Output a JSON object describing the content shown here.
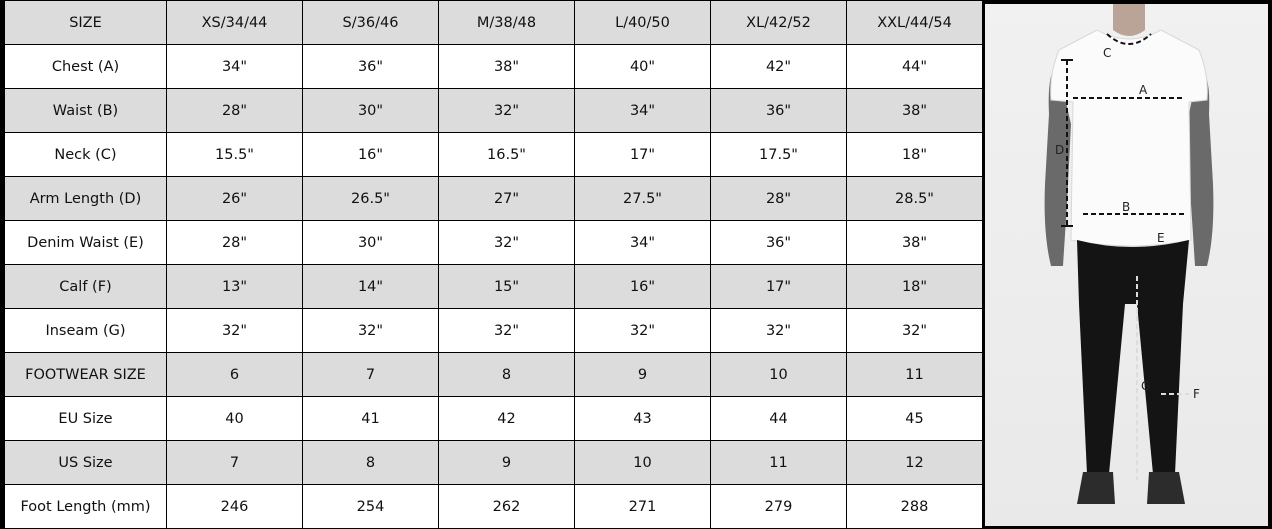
{
  "table": {
    "header": [
      "SIZE",
      "XS/34/44",
      "S/36/46",
      "M/38/48",
      "L/40/50",
      "XL/42/52",
      "XXL/44/54"
    ],
    "rows": [
      {
        "label": "Chest (A)",
        "values": [
          "34\"",
          "36\"",
          "38\"",
          "40\"",
          "42\"",
          "44\""
        ]
      },
      {
        "label": "Waist (B)",
        "values": [
          "28\"",
          "30\"",
          "32\"",
          "34\"",
          "36\"",
          "38\""
        ]
      },
      {
        "label": "Neck (C)",
        "values": [
          "15.5\"",
          "16\"",
          "16.5\"",
          "17\"",
          "17.5\"",
          "18\""
        ]
      },
      {
        "label": "Arm Length (D)",
        "values": [
          "26\"",
          "26.5\"",
          "27\"",
          "27.5\"",
          "28\"",
          "28.5\""
        ]
      },
      {
        "label": "Denim Waist (E)",
        "values": [
          "28\"",
          "30\"",
          "32\"",
          "34\"",
          "36\"",
          "38\""
        ]
      },
      {
        "label": "Calf (F)",
        "values": [
          "13\"",
          "14\"",
          "15\"",
          "16\"",
          "17\"",
          "18\""
        ]
      },
      {
        "label": "Inseam (G)",
        "values": [
          "32\"",
          "32\"",
          "32\"",
          "32\"",
          "32\"",
          "32\""
        ]
      },
      {
        "label": "FOOTWEAR SIZE",
        "values": [
          "6",
          "7",
          "8",
          "9",
          "10",
          "11"
        ]
      },
      {
        "label": "EU Size",
        "values": [
          "40",
          "41",
          "42",
          "43",
          "44",
          "45"
        ]
      },
      {
        "label": "US Size",
        "values": [
          "7",
          "8",
          "9",
          "10",
          "11",
          "12"
        ]
      },
      {
        "label": "Foot Length (mm)",
        "values": [
          "246",
          "254",
          "262",
          "271",
          "279",
          "288"
        ]
      }
    ]
  },
  "figure": {
    "labels": {
      "a": "A",
      "b": "B",
      "c": "C",
      "d": "D",
      "e": "E",
      "f": "F",
      "g": "G"
    }
  }
}
